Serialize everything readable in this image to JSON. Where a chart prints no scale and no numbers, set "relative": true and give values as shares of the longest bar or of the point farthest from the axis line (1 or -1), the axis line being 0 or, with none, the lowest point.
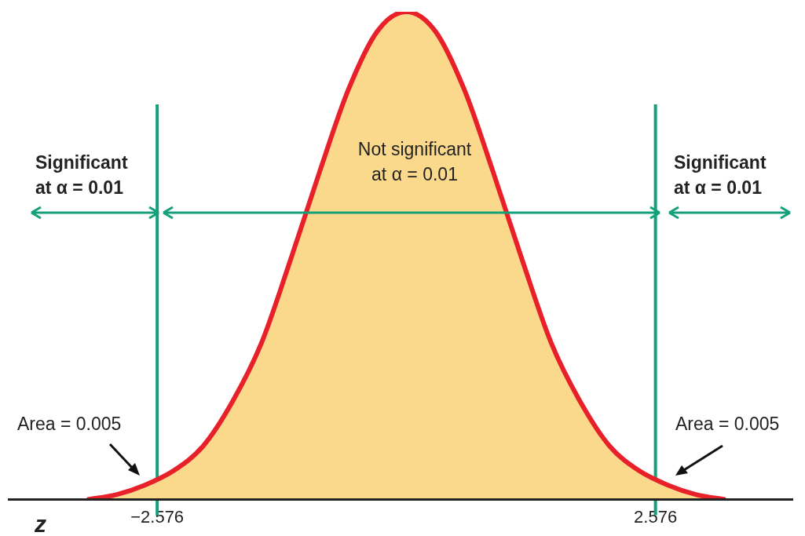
{
  "chart_data": {
    "type": "area",
    "relative": true,
    "xlabel": "z",
    "x": [
      -3.3,
      -3.0,
      -2.7,
      -2.4,
      -2.1,
      -1.8,
      -1.5,
      -1.2,
      -0.9,
      -0.6,
      -0.3,
      0,
      0.3,
      0.6,
      0.9,
      1.2,
      1.5,
      1.8,
      2.1,
      2.4,
      2.7,
      3.0,
      3.3
    ],
    "series": [
      {
        "color": "#e8202a",
        "values": [
          0.0,
          0.01,
          0.03,
          0.06,
          0.11,
          0.2,
          0.32,
          0.49,
          0.67,
          0.84,
          0.96,
          1,
          0.96,
          0.84,
          0.67,
          0.49,
          0.32,
          0.2,
          0.11,
          0.06,
          0.03,
          0.01,
          0.0
        ]
      }
    ],
    "xlim": [
      -4.12,
      4.0
    ],
    "xticks": [
      -2.576,
      2.576
    ],
    "ref_lines": [
      {
        "axis": "x",
        "value": -2.576,
        "color": "#14a07a"
      },
      {
        "axis": "x",
        "value": 2.576,
        "color": "#14a07a"
      }
    ],
    "annotations": [
      "Significant\nat α = 0.01",
      "Not significant\nat α = 0.01",
      "Significant\nat α = 0.01",
      "Area = 0.005",
      "Area = 0.005"
    ],
    "grid": false,
    "legend": false,
    "marker": "none",
    "line_style": "solid"
  }
}
